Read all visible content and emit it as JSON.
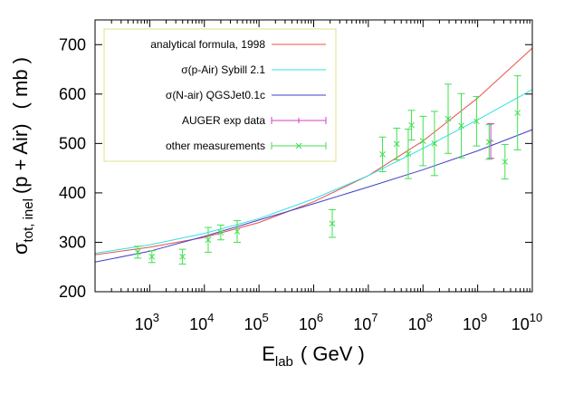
{
  "chart_data": {
    "type": "line",
    "title": "",
    "xlabel": {
      "main": "E",
      "sub": "lab",
      "unit": "( GeV )"
    },
    "ylabel": {
      "main": "σ",
      "sub": "tot, inel",
      "rest": "(p + Air)",
      "unit": "( mb )"
    },
    "xscale": "log",
    "xlim_log10": [
      2.0,
      10.0
    ],
    "ylim": [
      200,
      750
    ],
    "yticks": [
      200,
      300,
      400,
      500,
      600,
      700
    ],
    "ytick_labels": [
      "200",
      "300",
      "400",
      "500",
      "600",
      "700"
    ],
    "xticks": [
      {
        "base": "10",
        "exp": "3",
        "log": 3
      },
      {
        "base": "10",
        "exp": "4",
        "log": 4
      },
      {
        "base": "10",
        "exp": "5",
        "log": 5
      },
      {
        "base": "10",
        "exp": "6",
        "log": 6
      },
      {
        "base": "10",
        "exp": "7",
        "log": 7
      },
      {
        "base": "10",
        "exp": "8",
        "log": 8
      },
      {
        "base": "10",
        "exp": "9",
        "log": 9
      },
      {
        "base": "10",
        "exp": "10",
        "log": 10
      }
    ],
    "legend_position": "top-left",
    "series": [
      {
        "name": "analytical formula, 1998",
        "kind": "line",
        "color": "#e8504f",
        "points": [
          [
            2.0,
            275
          ],
          [
            3.0,
            290
          ],
          [
            4.0,
            310
          ],
          [
            5.0,
            340
          ],
          [
            6.0,
            382
          ],
          [
            7.0,
            435
          ],
          [
            8.0,
            505
          ],
          [
            9.0,
            592
          ],
          [
            10.0,
            693
          ]
        ]
      },
      {
        "name": "σ(p-Air) Sybill 2.1",
        "kind": "line",
        "color": "#33e0e0",
        "points": [
          [
            2.0,
            278
          ],
          [
            3.0,
            295
          ],
          [
            4.0,
            318
          ],
          [
            5.0,
            348
          ],
          [
            6.0,
            388
          ],
          [
            7.0,
            435
          ],
          [
            8.0,
            490
          ],
          [
            9.0,
            548
          ],
          [
            10.0,
            609
          ]
        ]
      },
      {
        "name": "σ(N-air) QGSJet0.1c",
        "kind": "line",
        "color": "#4040c8",
        "points": [
          [
            2.0,
            260
          ],
          [
            3.0,
            282
          ],
          [
            4.0,
            312
          ],
          [
            5.0,
            345
          ],
          [
            6.0,
            378
          ],
          [
            7.0,
            412
          ],
          [
            8.0,
            447
          ],
          [
            9.0,
            485
          ],
          [
            10.0,
            528
          ]
        ]
      },
      {
        "name": "AUGER exp data",
        "kind": "errorbar",
        "color": "#d040c8",
        "marker": "+",
        "points": [
          [
            9.24,
            505,
            35
          ]
        ]
      },
      {
        "name": "other measurements",
        "kind": "errorbar",
        "color": "#40e050",
        "marker": "x",
        "points": [
          [
            2.78,
            280,
            12
          ],
          [
            3.04,
            271,
            12
          ],
          [
            3.6,
            271,
            15
          ],
          [
            4.07,
            305,
            25
          ],
          [
            4.3,
            320,
            15
          ],
          [
            4.6,
            322,
            22
          ],
          [
            6.34,
            338,
            28
          ],
          [
            7.26,
            478,
            35
          ],
          [
            7.52,
            499,
            32
          ],
          [
            7.73,
            479,
            50
          ],
          [
            7.79,
            537,
            30
          ],
          [
            8.0,
            505,
            50
          ],
          [
            8.21,
            500,
            65
          ],
          [
            8.46,
            550,
            70
          ],
          [
            8.7,
            536,
            65
          ],
          [
            8.98,
            545,
            50
          ],
          [
            9.21,
            503,
            35
          ],
          [
            9.5,
            463,
            35
          ],
          [
            9.73,
            562,
            75
          ]
        ]
      }
    ]
  }
}
